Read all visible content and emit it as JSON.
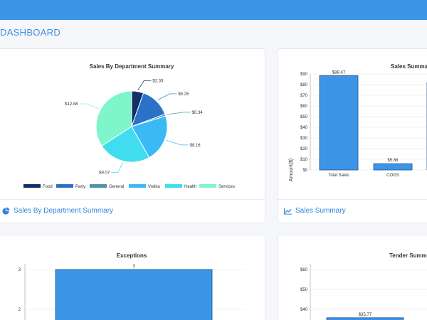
{
  "header": {
    "title": "DASHBOARD"
  },
  "cards": {
    "dept": {
      "title": "Sales By Department Summary",
      "footer_label": "Sales By Department Summary"
    },
    "sales": {
      "title": "Sales Summary",
      "footer_label": "Sales Summary",
      "ylabel": "Amount($)"
    },
    "exceptions": {
      "title": "Exceptions"
    },
    "tender": {
      "title": "Tender Summary"
    }
  },
  "colors": {
    "accent": "#3d95e8",
    "bar": "#3d95e8",
    "bar_stroke": "#1c4f8a"
  },
  "chart_data": [
    {
      "type": "pie",
      "title": "Sales By Department Summary",
      "labels": [
        "Food",
        "Party",
        "General",
        "Vodka",
        "Health",
        "Services"
      ],
      "values": [
        2.03,
        5.25,
        0.34,
        8.16,
        9.07,
        12.88
      ],
      "value_labels": [
        "$2.03",
        "$5.25",
        "$0.34",
        "$8.16",
        "$9.07",
        "$12.88"
      ],
      "colors": [
        "#132f66",
        "#2a72c8",
        "#4f93a8",
        "#39baf5",
        "#3fdded",
        "#7ff5cc"
      ],
      "legend": "bottom"
    },
    {
      "type": "bar",
      "title": "Sales Summary",
      "categories": [
        "Total Sales",
        "COGS"
      ],
      "values": [
        88.47,
        5.88
      ],
      "value_labels": [
        "$88.47",
        "$5.88"
      ],
      "ylabel": "Amount($)",
      "ylim": [
        0,
        90
      ],
      "yticks": [
        0,
        10,
        20,
        30,
        40,
        50,
        60,
        70,
        80,
        90
      ],
      "ytick_labels": [
        "$0",
        "$10",
        "$20",
        "$30",
        "$40",
        "$50",
        "$60",
        "$70",
        "$80",
        "$90"
      ]
    },
    {
      "type": "bar",
      "title": "Exceptions",
      "values": [
        3
      ],
      "value_labels": [
        "3"
      ],
      "yticks": [
        2,
        3
      ],
      "ytick_labels": [
        "2",
        "3"
      ]
    },
    {
      "type": "bar",
      "title": "Tender Summary",
      "values": [
        35.77
      ],
      "value_labels": [
        "$35.77"
      ],
      "yticks": [
        40,
        50,
        60
      ],
      "ytick_labels": [
        "$40",
        "$50",
        "$60"
      ]
    }
  ]
}
